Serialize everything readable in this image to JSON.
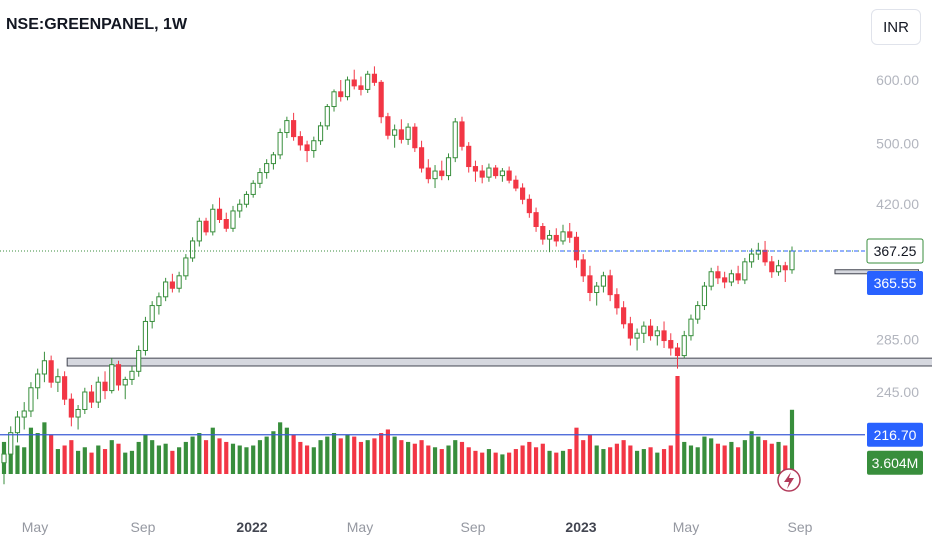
{
  "header": {
    "symbol_title": "NSE:GREENPANEL, 1W",
    "currency_label": "INR"
  },
  "colors": {
    "up": "#388e3c",
    "down": "#f23645",
    "up_volume": "#388e3c",
    "down_volume": "#f23645",
    "support_line": "#3b5bd6",
    "price_badge_dark": "#2962ff",
    "last_price_badge": "#2962ff",
    "volume_badge": "#388e3c",
    "zone_fill": "#d1d4dc"
  },
  "chart_data": {
    "type": "candlestick",
    "interval": "1W",
    "y_scale": "log",
    "ylim": [
      185,
      640
    ],
    "y_ticks": [
      "600.00",
      "500.00",
      "420.00",
      "285.00",
      "245.00"
    ],
    "x_ticks": [
      "May",
      "Sep",
      "2022",
      "May",
      "Sep",
      "2023",
      "May",
      "Sep"
    ],
    "candles": [
      [
        200,
        210,
        188,
        205,
        1.8
      ],
      [
        205,
        222,
        198,
        218,
        2.0
      ],
      [
        218,
        232,
        212,
        228,
        1.6
      ],
      [
        228,
        238,
        220,
        232,
        1.5
      ],
      [
        232,
        252,
        228,
        248,
        2.6
      ],
      [
        248,
        262,
        240,
        258,
        2.3
      ],
      [
        258,
        275,
        252,
        268,
        2.9
      ],
      [
        268,
        272,
        248,
        252,
        2.2
      ],
      [
        252,
        262,
        245,
        256,
        1.4
      ],
      [
        256,
        260,
        236,
        240,
        1.6
      ],
      [
        240,
        244,
        222,
        228,
        1.9
      ],
      [
        228,
        236,
        220,
        233,
        1.3
      ],
      [
        233,
        248,
        230,
        245,
        1.5
      ],
      [
        245,
        250,
        234,
        238,
        1.2
      ],
      [
        238,
        256,
        234,
        252,
        1.6
      ],
      [
        252,
        260,
        240,
        246,
        1.4
      ],
      [
        246,
        270,
        244,
        265,
        1.9
      ],
      [
        265,
        268,
        246,
        250,
        1.7
      ],
      [
        250,
        256,
        240,
        254,
        1.2
      ],
      [
        254,
        264,
        250,
        260,
        1.3
      ],
      [
        260,
        280,
        256,
        276,
        1.8
      ],
      [
        276,
        304,
        272,
        300,
        2.2
      ],
      [
        300,
        318,
        294,
        314,
        1.9
      ],
      [
        314,
        326,
        306,
        322,
        1.6
      ],
      [
        322,
        340,
        318,
        336,
        1.7
      ],
      [
        336,
        344,
        326,
        330,
        1.3
      ],
      [
        330,
        346,
        326,
        342,
        1.5
      ],
      [
        342,
        364,
        338,
        360,
        1.8
      ],
      [
        360,
        382,
        356,
        378,
        2.1
      ],
      [
        378,
        404,
        372,
        400,
        2.3
      ],
      [
        400,
        404,
        384,
        388,
        1.9
      ],
      [
        388,
        420,
        384,
        414,
        2.6
      ],
      [
        414,
        428,
        398,
        402,
        2.0
      ],
      [
        402,
        410,
        388,
        392,
        1.8
      ],
      [
        392,
        418,
        388,
        412,
        1.7
      ],
      [
        412,
        426,
        404,
        420,
        1.6
      ],
      [
        420,
        436,
        416,
        432,
        1.5
      ],
      [
        432,
        450,
        428,
        446,
        1.6
      ],
      [
        446,
        466,
        440,
        460,
        1.9
      ],
      [
        460,
        478,
        452,
        472,
        2.1
      ],
      [
        472,
        488,
        464,
        484,
        2.4
      ],
      [
        484,
        522,
        478,
        516,
        2.9
      ],
      [
        516,
        540,
        508,
        534,
        2.6
      ],
      [
        534,
        546,
        504,
        510,
        2.2
      ],
      [
        510,
        518,
        490,
        498,
        1.8
      ],
      [
        498,
        504,
        474,
        490,
        1.6
      ],
      [
        490,
        510,
        480,
        504,
        1.5
      ],
      [
        504,
        532,
        498,
        526,
        1.9
      ],
      [
        526,
        560,
        520,
        556,
        2.1
      ],
      [
        556,
        584,
        548,
        580,
        2.3
      ],
      [
        580,
        600,
        564,
        572,
        2.0
      ],
      [
        572,
        606,
        566,
        600,
        2.2
      ],
      [
        600,
        618,
        584,
        590,
        2.1
      ],
      [
        590,
        606,
        574,
        584,
        1.8
      ],
      [
        584,
        616,
        578,
        610,
        1.9
      ],
      [
        610,
        624,
        590,
        596,
        2.0
      ],
      [
        596,
        600,
        530,
        540,
        2.3
      ],
      [
        540,
        546,
        506,
        512,
        2.5
      ],
      [
        512,
        528,
        494,
        520,
        2.1
      ],
      [
        520,
        536,
        500,
        506,
        1.9
      ],
      [
        506,
        530,
        498,
        524,
        1.8
      ],
      [
        524,
        530,
        488,
        494,
        1.7
      ],
      [
        494,
        504,
        460,
        466,
        1.9
      ],
      [
        466,
        478,
        446,
        452,
        1.6
      ],
      [
        452,
        470,
        440,
        462,
        1.5
      ],
      [
        462,
        476,
        450,
        456,
        1.4
      ],
      [
        456,
        486,
        450,
        480,
        1.6
      ],
      [
        480,
        538,
        474,
        532,
        1.9
      ],
      [
        532,
        540,
        490,
        496,
        1.8
      ],
      [
        496,
        502,
        460,
        468,
        1.5
      ],
      [
        468,
        476,
        448,
        462,
        1.3
      ],
      [
        462,
        470,
        446,
        454,
        1.2
      ],
      [
        454,
        472,
        448,
        466,
        1.4
      ],
      [
        466,
        470,
        452,
        456,
        1.2
      ],
      [
        456,
        466,
        448,
        462,
        1.1
      ],
      [
        462,
        468,
        446,
        450,
        1.2
      ],
      [
        450,
        456,
        436,
        440,
        1.4
      ],
      [
        440,
        446,
        420,
        426,
        1.6
      ],
      [
        426,
        432,
        404,
        410,
        1.8
      ],
      [
        410,
        416,
        388,
        394,
        1.5
      ],
      [
        394,
        398,
        374,
        380,
        1.7
      ],
      [
        380,
        390,
        366,
        384,
        1.3
      ],
      [
        384,
        392,
        372,
        378,
        1.2
      ],
      [
        378,
        396,
        374,
        388,
        1.3
      ],
      [
        388,
        398,
        376,
        382,
        1.4
      ],
      [
        382,
        388,
        350,
        358,
        2.6
      ],
      [
        358,
        364,
        336,
        342,
        1.9
      ],
      [
        342,
        352,
        318,
        326,
        2.2
      ],
      [
        326,
        336,
        314,
        332,
        1.6
      ],
      [
        332,
        346,
        326,
        342,
        1.4
      ],
      [
        342,
        348,
        318,
        324,
        1.5
      ],
      [
        324,
        330,
        306,
        312,
        1.7
      ],
      [
        312,
        318,
        294,
        298,
        1.9
      ],
      [
        298,
        304,
        280,
        286,
        1.6
      ],
      [
        286,
        294,
        276,
        290,
        1.3
      ],
      [
        290,
        300,
        282,
        296,
        1.4
      ],
      [
        296,
        302,
        284,
        288,
        1.5
      ],
      [
        288,
        296,
        280,
        292,
        1.2
      ],
      [
        292,
        300,
        278,
        284,
        1.4
      ],
      [
        284,
        290,
        272,
        278,
        1.6
      ],
      [
        278,
        282,
        262,
        272,
        5.5
      ],
      [
        272,
        292,
        270,
        288,
        1.8
      ],
      [
        288,
        306,
        284,
        302,
        1.6
      ],
      [
        302,
        318,
        298,
        314,
        1.5
      ],
      [
        314,
        336,
        310,
        332,
        2.1
      ],
      [
        332,
        350,
        328,
        346,
        2.0
      ],
      [
        346,
        352,
        334,
        340,
        1.7
      ],
      [
        340,
        346,
        330,
        336,
        1.6
      ],
      [
        336,
        348,
        332,
        344,
        1.8
      ],
      [
        344,
        352,
        334,
        338,
        1.5
      ],
      [
        338,
        360,
        334,
        356,
        1.9
      ],
      [
        356,
        370,
        350,
        364,
        2.4
      ],
      [
        364,
        376,
        358,
        368,
        2.1
      ],
      [
        368,
        378,
        352,
        356,
        1.9
      ],
      [
        356,
        362,
        340,
        346,
        1.7
      ],
      [
        346,
        358,
        342,
        352,
        1.8
      ],
      [
        352,
        356,
        336,
        348,
        1.6
      ],
      [
        348,
        372,
        344,
        367.25,
        3.604
      ]
    ],
    "volume_unit": "M",
    "support_level": 216.7,
    "resistance_level": 365.55,
    "last_price": 367.25,
    "last_volume": "3.604M",
    "zones": [
      {
        "start_index": 10,
        "end_index": 141,
        "low": 264,
        "high": 270
      },
      {
        "start_index": 124,
        "end_index": 134,
        "low": 344,
        "high": 348
      }
    ],
    "price_badges": {
      "last_price": "367.25",
      "level_price": "365.55",
      "support_price": "216.70",
      "volume": "3.604M"
    },
    "grid": false,
    "legend": "none"
  }
}
